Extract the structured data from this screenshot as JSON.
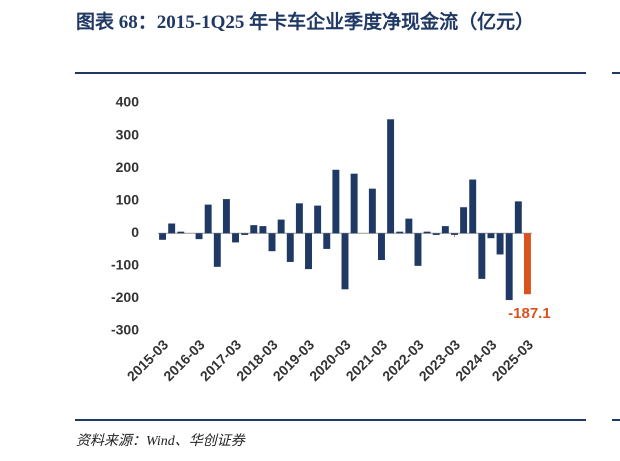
{
  "chart_data": {
    "type": "bar",
    "title": "图表 68：2015-1Q25 年卡车企业季度净现金流（亿元）",
    "source": "资料来源：Wind、华创证券",
    "categories": [
      "2015-03",
      null,
      null,
      null,
      "2016-03",
      null,
      null,
      null,
      "2017-03",
      null,
      null,
      null,
      "2018-03",
      null,
      null,
      null,
      "2019-03",
      null,
      null,
      null,
      "2020-03",
      null,
      null,
      null,
      "2021-03",
      null,
      null,
      null,
      "2022-03",
      null,
      null,
      null,
      "2023-03",
      null,
      null,
      null,
      "2024-03",
      null,
      null,
      null,
      "2025-03"
    ],
    "values": [
      -20,
      30,
      5,
      0,
      -18,
      88,
      -103,
      105,
      -28,
      -5,
      25,
      22,
      -55,
      42,
      -88,
      92,
      -110,
      85,
      -48,
      195,
      -172,
      183,
      0,
      137,
      -82,
      350,
      5,
      45,
      -100,
      5,
      -5,
      22,
      -5,
      80,
      165,
      -140,
      -15,
      -65,
      -205,
      98,
      -187.1
    ],
    "color": "#1f3864",
    "last_color": "#d9531e",
    "ylim": [
      -300,
      400
    ],
    "yticks": [
      -300,
      -200,
      -100,
      0,
      100,
      200,
      300,
      400
    ],
    "grid": false
  }
}
